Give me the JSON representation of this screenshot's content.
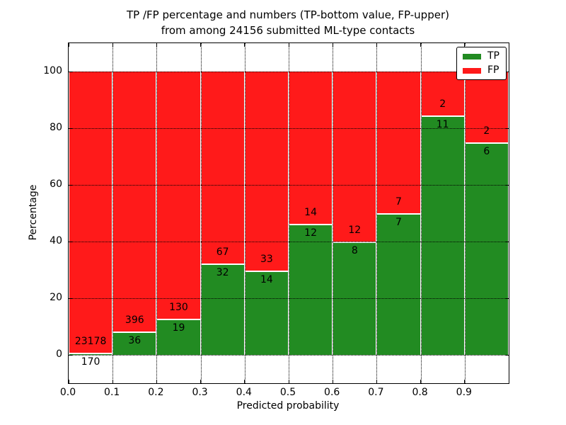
{
  "figure": {
    "title_line1": "TP /FP percentage and numbers (TP-bottom value, FP-upper)",
    "title_line2": "from among 24156 submitted ML-type contacts",
    "xlabel": "Predicted probability",
    "ylabel": "Percentage"
  },
  "legend": {
    "entries": [
      {
        "label": "TP",
        "color": "#228b22"
      },
      {
        "label": "FP",
        "color": "#ff1a1a"
      }
    ]
  },
  "chart_data": {
    "type": "bar",
    "stacked": true,
    "normalized_to_percent": true,
    "title": "TP /FP percentage and numbers (TP-bottom value, FP-upper) from among 24156 submitted ML-type contacts",
    "xlabel": "Predicted probability",
    "ylabel": "Percentage",
    "total_contacts": 24156,
    "categories": [
      "0.0-0.1",
      "0.1-0.2",
      "0.2-0.3",
      "0.3-0.4",
      "0.4-0.5",
      "0.5-0.6",
      "0.6-0.7",
      "0.7-0.8",
      "0.8-0.9",
      "0.9-1.0"
    ],
    "x_tick_labels": [
      "0.0",
      "0.1",
      "0.2",
      "0.3",
      "0.4",
      "0.5",
      "0.6",
      "0.7",
      "0.8",
      "0.9"
    ],
    "y_ticks": [
      0,
      20,
      40,
      60,
      80,
      100
    ],
    "ylim": [
      -10,
      110
    ],
    "xlim": [
      0.0,
      1.0
    ],
    "bin_width": 0.1,
    "grid": "dotted",
    "legend_position": "upper right",
    "series": [
      {
        "name": "TP",
        "color": "#228b22",
        "counts": [
          170,
          36,
          19,
          32,
          14,
          12,
          8,
          7,
          11,
          6
        ],
        "percent": [
          0.73,
          8.33,
          12.75,
          32.32,
          29.79,
          46.15,
          40.0,
          50.0,
          84.62,
          75.0
        ]
      },
      {
        "name": "FP",
        "color": "#ff1a1a",
        "counts": [
          23178,
          396,
          130,
          67,
          33,
          14,
          12,
          7,
          2,
          2
        ],
        "percent": [
          99.27,
          91.67,
          87.25,
          67.68,
          70.21,
          53.85,
          60.0,
          50.0,
          15.38,
          25.0
        ]
      }
    ]
  }
}
